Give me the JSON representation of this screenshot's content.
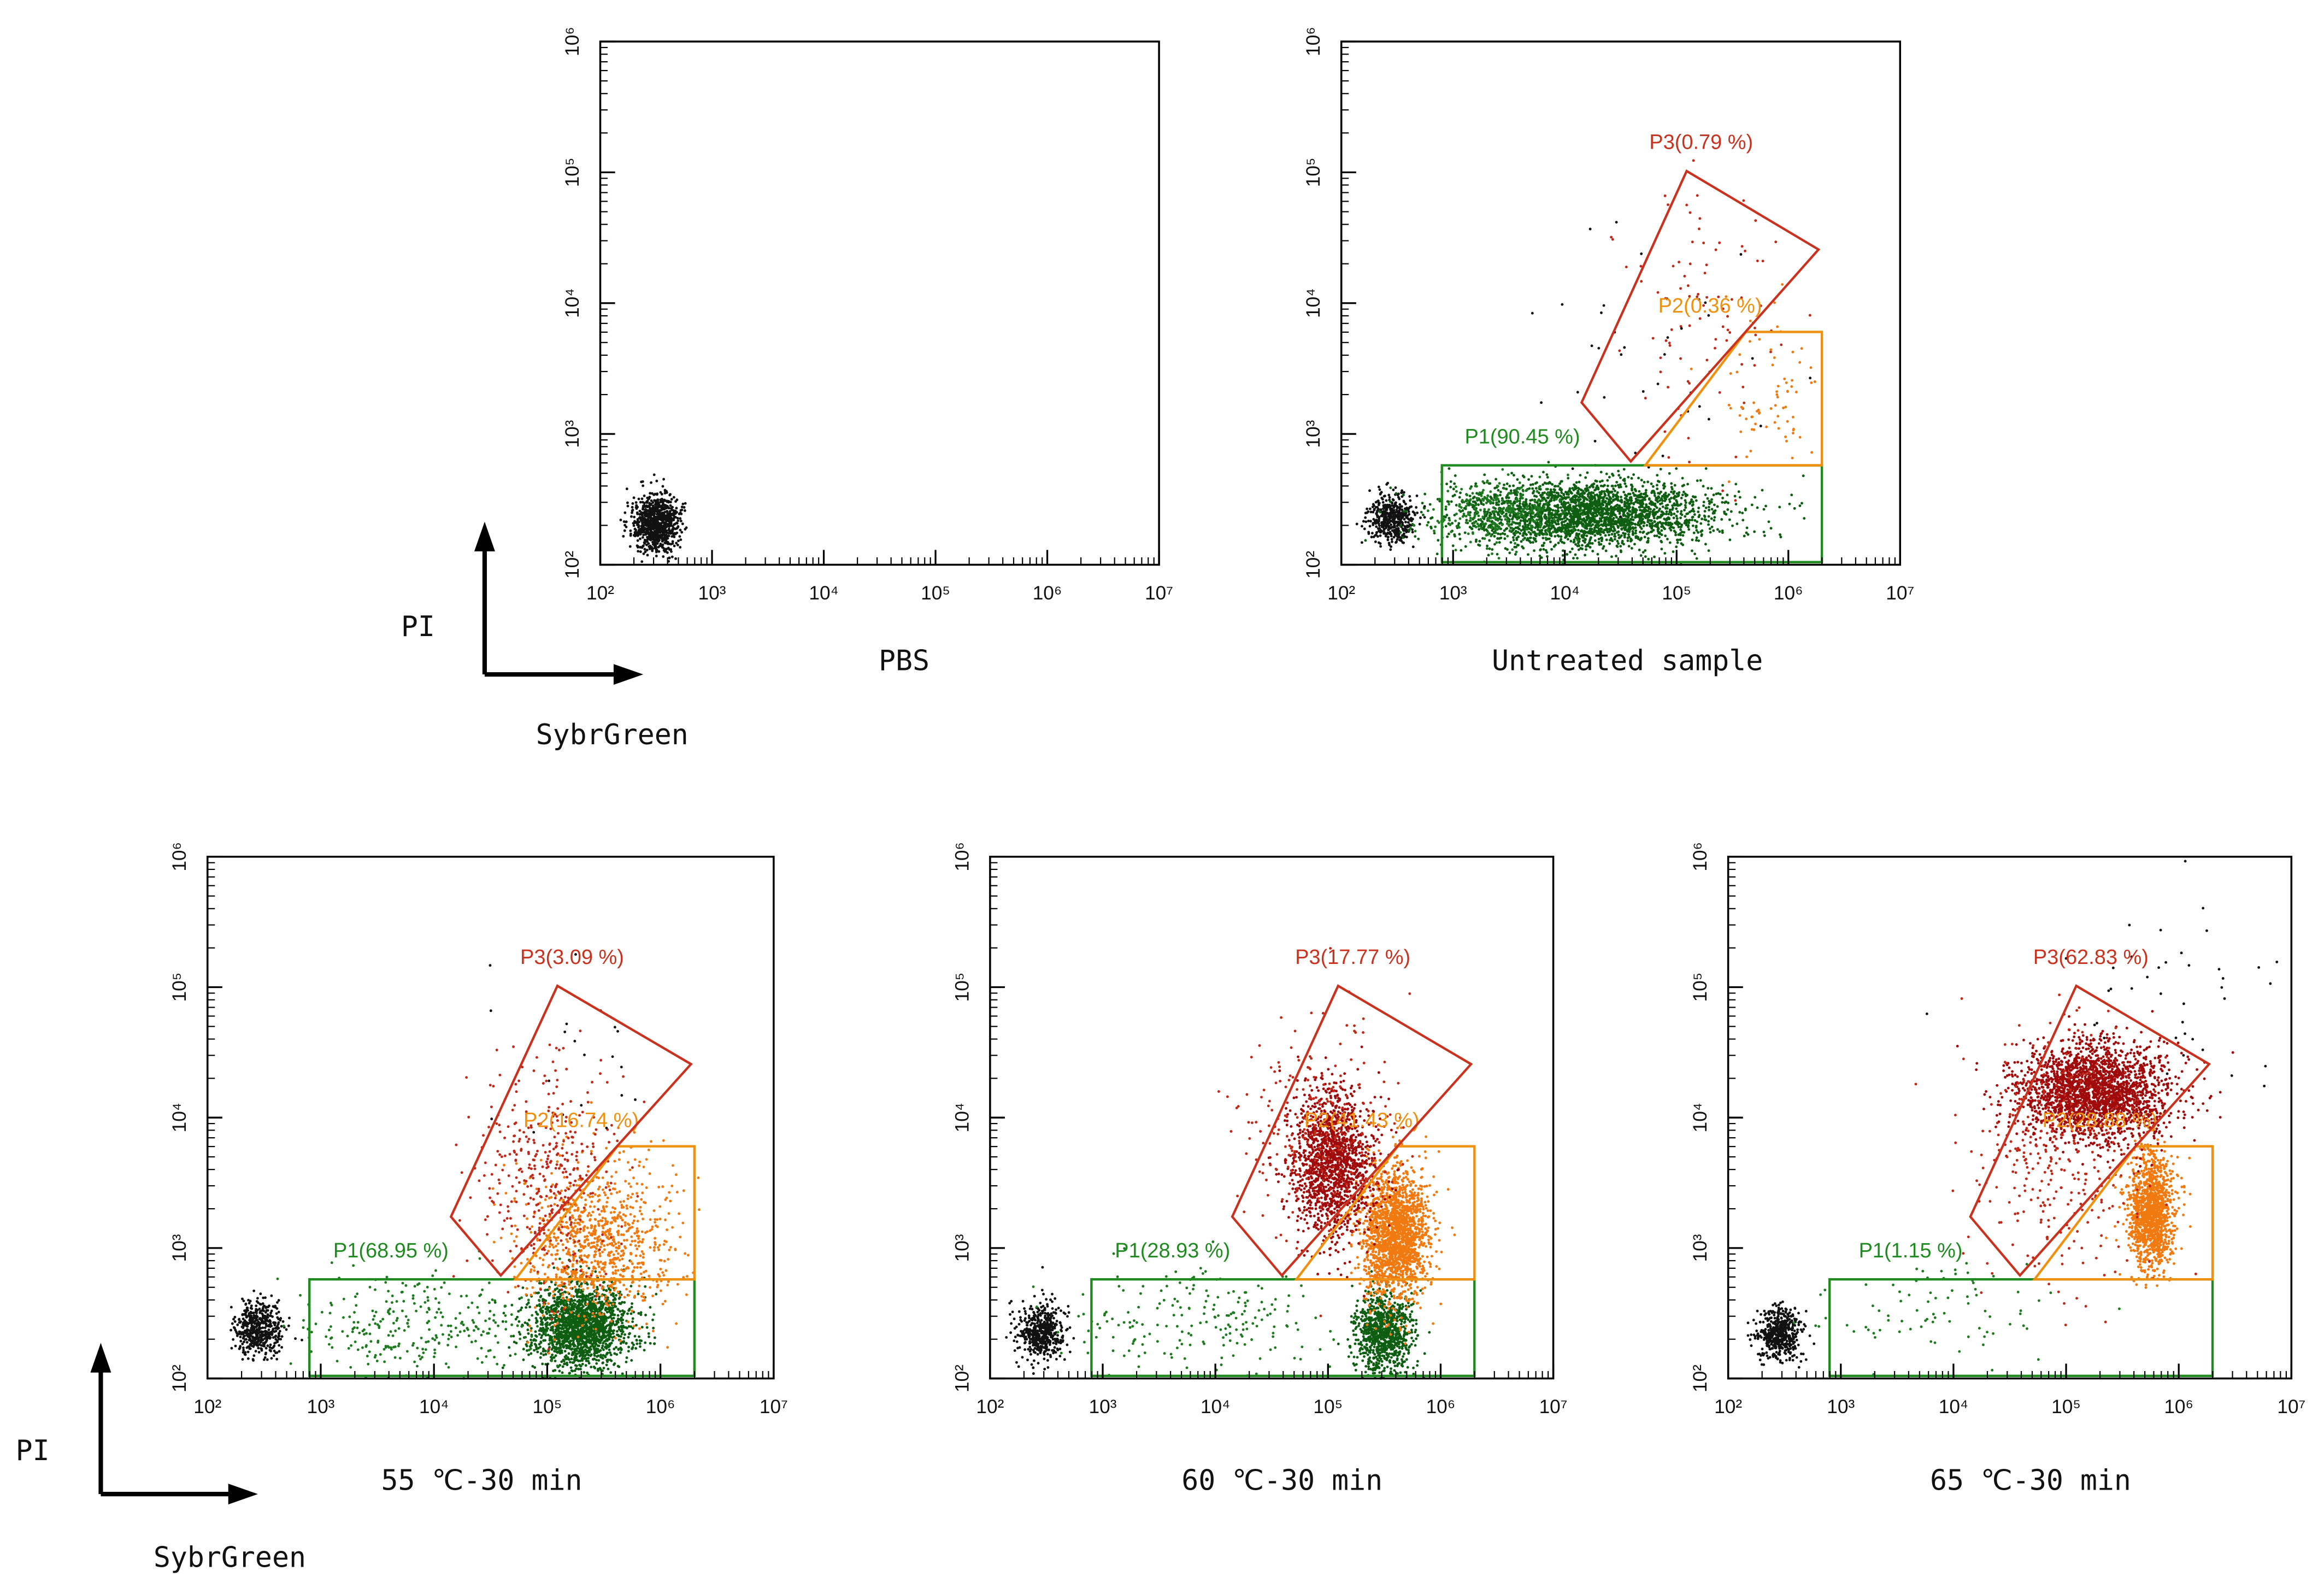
{
  "chart_data": [
    {
      "type": "scatter",
      "title": "PBS",
      "xscale": "log",
      "yscale": "log",
      "xlim": [
        100,
        10000000
      ],
      "ylim": [
        100,
        1000000
      ],
      "xticks": [
        {
          "value": 100,
          "label": "10²"
        },
        {
          "value": 1000,
          "label": "10³"
        },
        {
          "value": 10000,
          "label": "10⁴"
        },
        {
          "value": 100000,
          "label": "10⁵"
        },
        {
          "value": 1000000,
          "label": "10⁶"
        },
        {
          "value": 10000000,
          "label": "10⁷"
        }
      ],
      "yticks": [
        {
          "value": 100,
          "label": "10²"
        },
        {
          "value": 1000,
          "label": "10³"
        },
        {
          "value": 10000,
          "label": "10⁴"
        },
        {
          "value": 100000,
          "label": "10⁵"
        },
        {
          "value": 1000000,
          "label": "10⁶"
        }
      ],
      "gates": []
    },
    {
      "type": "scatter",
      "title": "Untreated sample",
      "xscale": "log",
      "yscale": "log",
      "xlim": [
        100,
        10000000
      ],
      "ylim": [
        100,
        1000000
      ],
      "xticks": [
        {
          "value": 100,
          "label": "10²"
        },
        {
          "value": 1000,
          "label": "10³"
        },
        {
          "value": 10000,
          "label": "10⁴"
        },
        {
          "value": 100000,
          "label": "10⁵"
        },
        {
          "value": 1000000,
          "label": "10⁶"
        },
        {
          "value": 10000000,
          "label": "10⁷"
        }
      ],
      "yticks": [
        {
          "value": 100,
          "label": "10²"
        },
        {
          "value": 1000,
          "label": "10³"
        },
        {
          "value": 10000,
          "label": "10⁴"
        },
        {
          "value": 100000,
          "label": "10⁵"
        },
        {
          "value": 1000000,
          "label": "10⁶"
        }
      ],
      "gates": [
        {
          "label": "P1(90.45 %)",
          "color": "#1f8a1f"
        },
        {
          "label": "P2(0.36 %)",
          "color": "#f0900f"
        },
        {
          "label": "P3(0.79 %)",
          "color": "#c8321e"
        }
      ]
    },
    {
      "type": "scatter",
      "title": "55 ℃-30 min",
      "xscale": "log",
      "yscale": "log",
      "xlim": [
        100,
        10000000
      ],
      "ylim": [
        100,
        1000000
      ],
      "xticks": [
        {
          "value": 100,
          "label": "10²"
        },
        {
          "value": 1000,
          "label": "10³"
        },
        {
          "value": 10000,
          "label": "10⁴"
        },
        {
          "value": 100000,
          "label": "10⁵"
        },
        {
          "value": 1000000,
          "label": "10⁶"
        },
        {
          "value": 10000000,
          "label": "10⁷"
        }
      ],
      "yticks": [
        {
          "value": 100,
          "label": "10²"
        },
        {
          "value": 1000,
          "label": "10³"
        },
        {
          "value": 10000,
          "label": "10⁴"
        },
        {
          "value": 100000,
          "label": "10⁵"
        },
        {
          "value": 1000000,
          "label": "10⁶"
        }
      ],
      "gates": [
        {
          "label": "P1(68.95 %)",
          "color": "#1f8a1f"
        },
        {
          "label": "P2(16.74 %)",
          "color": "#f0900f"
        },
        {
          "label": "P3(3.09 %)",
          "color": "#c8321e"
        }
      ]
    },
    {
      "type": "scatter",
      "title": "60 ℃-30 min",
      "xscale": "log",
      "yscale": "log",
      "xlim": [
        100,
        10000000
      ],
      "ylim": [
        100,
        1000000
      ],
      "xticks": [
        {
          "value": 100,
          "label": "10²"
        },
        {
          "value": 1000,
          "label": "10³"
        },
        {
          "value": 10000,
          "label": "10⁴"
        },
        {
          "value": 100000,
          "label": "10⁵"
        },
        {
          "value": 1000000,
          "label": "10⁶"
        },
        {
          "value": 10000000,
          "label": "10⁷"
        }
      ],
      "yticks": [
        {
          "value": 100,
          "label": "10²"
        },
        {
          "value": 1000,
          "label": "10³"
        },
        {
          "value": 10000,
          "label": "10⁴"
        },
        {
          "value": 100000,
          "label": "10⁵"
        },
        {
          "value": 1000000,
          "label": "10⁶"
        }
      ],
      "gates": [
        {
          "label": "P1(28.93 %)",
          "color": "#1f8a1f"
        },
        {
          "label": "P2(41.43 %)",
          "color": "#f0900f"
        },
        {
          "label": "P3(17.77 %)",
          "color": "#c8321e"
        }
      ]
    },
    {
      "type": "scatter",
      "title": "65 ℃-30 min",
      "xscale": "log",
      "yscale": "log",
      "xlim": [
        100,
        10000000
      ],
      "ylim": [
        100,
        1000000
      ],
      "xticks": [
        {
          "value": 100,
          "label": "10²"
        },
        {
          "value": 1000,
          "label": "10³"
        },
        {
          "value": 10000,
          "label": "10⁴"
        },
        {
          "value": 100000,
          "label": "10⁵"
        },
        {
          "value": 1000000,
          "label": "10⁶"
        },
        {
          "value": 10000000,
          "label": "10⁷"
        }
      ],
      "yticks": [
        {
          "value": 100,
          "label": "10²"
        },
        {
          "value": 1000,
          "label": "10³"
        },
        {
          "value": 10000,
          "label": "10⁴"
        },
        {
          "value": 100000,
          "label": "10⁵"
        },
        {
          "value": 1000000,
          "label": "10⁶"
        }
      ],
      "gates": [
        {
          "label": "P1(1.15 %)",
          "color": "#1f8a1f"
        },
        {
          "label": "P2(28.88 %)",
          "color": "#f0900f"
        },
        {
          "label": "P3(62.83 %)",
          "color": "#c8321e"
        }
      ]
    }
  ],
  "axis_keys": [
    {
      "y_label": "PI",
      "x_label": "SybrGreen"
    },
    {
      "y_label": "PI",
      "x_label": "SybrGreen"
    }
  ]
}
